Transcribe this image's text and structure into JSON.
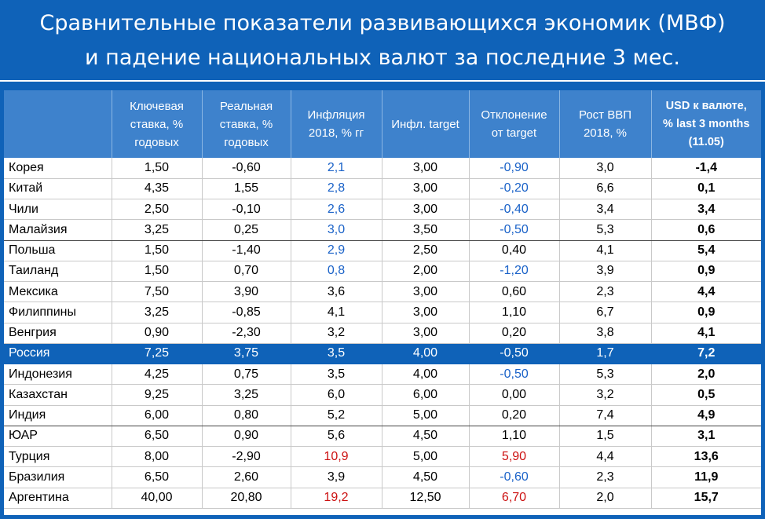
{
  "title": {
    "line1": "Сравнительные показатели развивающихся экономик (МВФ)",
    "line2": "и падение национальных валют за последние 3 мес."
  },
  "colors": {
    "background": "#0f62b8",
    "header": "#3e82cc",
    "blue_text": "#1a62c8",
    "red_text": "#cc1111"
  },
  "table": {
    "headers": [
      "",
      "Ключевая\nставка, %\nгодовых",
      "Реальная\nставка, %\nгодовых",
      "Инфляция\n2018, % гг",
      "Инфл. target",
      "Отклонение\nот target",
      "Рост ВВП\n2018, %",
      "USD к  валюте,\n% last 3 months\n(11.05)"
    ],
    "rows": [
      {
        "cells": [
          "Корея",
          "1,50",
          "-0,60",
          "2,1",
          "3,00",
          "-0,90",
          "3,0",
          "-1,4"
        ],
        "colors": [
          "",
          "",
          "",
          "blue",
          "",
          "blue",
          "",
          ""
        ]
      },
      {
        "cells": [
          "Китай",
          "4,35",
          "1,55",
          "2,8",
          "3,00",
          "-0,20",
          "6,6",
          "0,1"
        ],
        "colors": [
          "",
          "",
          "",
          "blue",
          "",
          "blue",
          "",
          ""
        ]
      },
      {
        "cells": [
          "Чили",
          "2,50",
          "-0,10",
          "2,6",
          "3,00",
          "-0,40",
          "3,4",
          "3,4"
        ],
        "colors": [
          "",
          "",
          "",
          "blue",
          "",
          "blue",
          "",
          ""
        ]
      },
      {
        "cells": [
          "Малайзия",
          "3,25",
          "0,25",
          "3,0",
          "3,50",
          "-0,50",
          "5,3",
          "0,6"
        ],
        "colors": [
          "",
          "",
          "",
          "blue",
          "",
          "blue",
          "",
          ""
        ],
        "divider": true
      },
      {
        "cells": [
          "Польша",
          "1,50",
          "-1,40",
          "2,9",
          "2,50",
          "0,40",
          "4,1",
          "5,4"
        ],
        "colors": [
          "",
          "",
          "",
          "blue",
          "",
          "",
          "",
          ""
        ]
      },
      {
        "cells": [
          "Таиланд",
          "1,50",
          "0,70",
          "0,8",
          "2,00",
          "-1,20",
          "3,9",
          "0,9"
        ],
        "colors": [
          "",
          "",
          "",
          "blue",
          "",
          "blue",
          "",
          ""
        ]
      },
      {
        "cells": [
          "Мексика",
          "7,50",
          "3,90",
          "3,6",
          "3,00",
          "0,60",
          "2,3",
          "4,4"
        ],
        "colors": [
          "",
          "",
          "",
          "",
          "",
          "",
          "",
          ""
        ]
      },
      {
        "cells": [
          "Филиппины",
          "3,25",
          "-0,85",
          "4,1",
          "3,00",
          "1,10",
          "6,7",
          "0,9"
        ],
        "colors": [
          "",
          "",
          "",
          "",
          "",
          "",
          "",
          ""
        ]
      },
      {
        "cells": [
          "Венгрия",
          "0,90",
          "-2,30",
          "3,2",
          "3,00",
          "0,20",
          "3,8",
          "4,1"
        ],
        "colors": [
          "",
          "",
          "",
          "",
          "",
          "",
          "",
          ""
        ]
      },
      {
        "cells": [
          "Россия",
          "7,25",
          "3,75",
          "3,5",
          "4,00",
          "-0,50",
          "1,7",
          "7,2"
        ],
        "colors": [
          "",
          "",
          "",
          "",
          "",
          "",
          "",
          ""
        ],
        "highlight": true
      },
      {
        "cells": [
          "Индонезия",
          "4,25",
          "0,75",
          "3,5",
          "4,00",
          "-0,50",
          "5,3",
          "2,0"
        ],
        "colors": [
          "",
          "",
          "",
          "",
          "",
          "blue",
          "",
          ""
        ]
      },
      {
        "cells": [
          "Казахстан",
          "9,25",
          "3,25",
          "6,0",
          "6,00",
          "0,00",
          "3,2",
          "0,5"
        ],
        "colors": [
          "",
          "",
          "",
          "",
          "",
          "",
          "",
          ""
        ]
      },
      {
        "cells": [
          "Индия",
          "6,00",
          "0,80",
          "5,2",
          "5,00",
          "0,20",
          "7,4",
          "4,9"
        ],
        "colors": [
          "",
          "",
          "",
          "",
          "",
          "",
          "",
          ""
        ],
        "divider": true
      },
      {
        "cells": [
          "ЮАР",
          "6,50",
          "0,90",
          "5,6",
          "4,50",
          "1,10",
          "1,5",
          "3,1"
        ],
        "colors": [
          "",
          "",
          "",
          "",
          "",
          "",
          "",
          ""
        ]
      },
      {
        "cells": [
          "Турция",
          "8,00",
          "-2,90",
          "10,9",
          "5,00",
          "5,90",
          "4,4",
          "13,6"
        ],
        "colors": [
          "",
          "",
          "",
          "red",
          "",
          "red",
          "",
          ""
        ]
      },
      {
        "cells": [
          "Бразилия",
          "6,50",
          "2,60",
          "3,9",
          "4,50",
          "-0,60",
          "2,3",
          "11,9"
        ],
        "colors": [
          "",
          "",
          "",
          "",
          "",
          "blue",
          "",
          ""
        ]
      },
      {
        "cells": [
          "Аргентина",
          "40,00",
          "20,80",
          "19,2",
          "12,50",
          "6,70",
          "2,0",
          "15,7"
        ],
        "colors": [
          "",
          "",
          "",
          "red",
          "",
          "red",
          "",
          ""
        ]
      }
    ]
  }
}
